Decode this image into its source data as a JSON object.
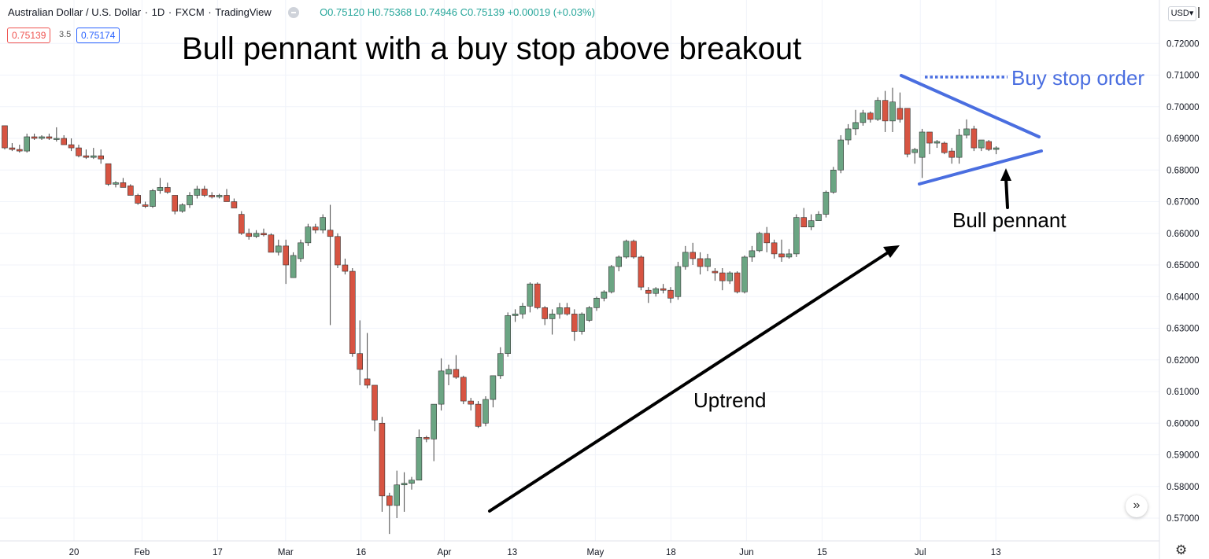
{
  "header": {
    "title": "Australian Dollar / U.S. Dollar",
    "interval": "1D",
    "exchange": "FXCM",
    "platform": "TradingView",
    "ohlc": "O0.75120 H0.75368 L0.74946 C0.75139 +0.00019 (+0.03%)",
    "sell_price": "0.75139",
    "spread": "3.5",
    "buy_price": "0.75174",
    "currency": "USD"
  },
  "annotations": {
    "title": "Bull pennant with a buy stop above breakout",
    "buy_stop_label": "Buy stop order",
    "pennant_label": "Bull pennant",
    "trend_label": "Uptrend"
  },
  "colors": {
    "up": "#6ba583",
    "down": "#d75442",
    "pennant_lines": "#4a6ee0",
    "axis_text": "#131722",
    "grid": "#f0f3fa"
  },
  "controls": {
    "scroll_icon": "chevron-double-right-icon",
    "settings_icon": "gear-icon"
  },
  "chart_data": {
    "type": "candlestick",
    "ylim": [
      0.565,
      0.7225
    ],
    "y_ticks": [
      "0.72000",
      "0.71000",
      "0.70000",
      "0.69000",
      "0.68000",
      "0.67000",
      "0.66000",
      "0.65000",
      "0.64000",
      "0.63000",
      "0.62000",
      "0.61000",
      "0.60000",
      "0.59000",
      "0.58000",
      "0.57000"
    ],
    "x_ticks": [
      {
        "label": "20",
        "day": 0
      },
      {
        "label": "Feb",
        "day": 9
      },
      {
        "label": "17",
        "day": 19
      },
      {
        "label": "Mar",
        "day": 28
      },
      {
        "label": "16",
        "day": 38
      },
      {
        "label": "Apr",
        "day": 49
      },
      {
        "label": "13",
        "day": 58
      },
      {
        "label": "May",
        "day": 69
      },
      {
        "label": "18",
        "day": 79
      },
      {
        "label": "Jun",
        "day": 89
      },
      {
        "label": "15",
        "day": 99
      },
      {
        "label": "Jul",
        "day": 112
      },
      {
        "label": "13",
        "day": 122
      }
    ],
    "candles": [
      [
        0.694,
        0.694,
        0.6865,
        0.687
      ],
      [
        0.687,
        0.6885,
        0.686,
        0.6865
      ],
      [
        0.6865,
        0.688,
        0.6855,
        0.686
      ],
      [
        0.686,
        0.6915,
        0.6855,
        0.6905
      ],
      [
        0.6905,
        0.6915,
        0.6895,
        0.69
      ],
      [
        0.69,
        0.691,
        0.6895,
        0.6905
      ],
      [
        0.6905,
        0.6915,
        0.6895,
        0.69
      ],
      [
        0.69,
        0.6935,
        0.689,
        0.69
      ],
      [
        0.69,
        0.691,
        0.688,
        0.688
      ],
      [
        0.688,
        0.69,
        0.686,
        0.687
      ],
      [
        0.687,
        0.688,
        0.684,
        0.6845
      ],
      [
        0.6845,
        0.6865,
        0.6835,
        0.684
      ],
      [
        0.684,
        0.687,
        0.6835,
        0.6845
      ],
      [
        0.6845,
        0.6865,
        0.682,
        0.6835
      ],
      [
        0.682,
        0.682,
        0.675,
        0.6755
      ],
      [
        0.6755,
        0.6765,
        0.6745,
        0.676
      ],
      [
        0.676,
        0.6775,
        0.6745,
        0.6745
      ],
      [
        0.675,
        0.6755,
        0.672,
        0.672
      ],
      [
        0.672,
        0.6725,
        0.669,
        0.6695
      ],
      [
        0.669,
        0.67,
        0.668,
        0.6685
      ],
      [
        0.6685,
        0.674,
        0.668,
        0.6735
      ],
      [
        0.6735,
        0.6775,
        0.6725,
        0.6745
      ],
      [
        0.6745,
        0.676,
        0.6725,
        0.673
      ],
      [
        0.672,
        0.672,
        0.666,
        0.667
      ],
      [
        0.667,
        0.6695,
        0.6665,
        0.669
      ],
      [
        0.669,
        0.673,
        0.668,
        0.672
      ],
      [
        0.672,
        0.675,
        0.671,
        0.674
      ],
      [
        0.674,
        0.675,
        0.6715,
        0.672
      ],
      [
        0.672,
        0.673,
        0.671,
        0.6715
      ],
      [
        0.6715,
        0.6725,
        0.671,
        0.672
      ],
      [
        0.672,
        0.674,
        0.67,
        0.67
      ],
      [
        0.67,
        0.671,
        0.668,
        0.668
      ],
      [
        0.666,
        0.667,
        0.6595,
        0.66
      ],
      [
        0.66,
        0.6615,
        0.658,
        0.659
      ],
      [
        0.659,
        0.661,
        0.6585,
        0.66
      ],
      [
        0.66,
        0.6615,
        0.659,
        0.6595
      ],
      [
        0.6595,
        0.66,
        0.654,
        0.654
      ],
      [
        0.654,
        0.658,
        0.653,
        0.656
      ],
      [
        0.656,
        0.658,
        0.644,
        0.65
      ],
      [
        0.646,
        0.654,
        0.646,
        0.653
      ],
      [
        0.652,
        0.658,
        0.651,
        0.657
      ],
      [
        0.657,
        0.663,
        0.656,
        0.662
      ],
      [
        0.662,
        0.663,
        0.66,
        0.661
      ],
      [
        0.661,
        0.666,
        0.66,
        0.665
      ],
      [
        0.661,
        0.669,
        0.631,
        0.659
      ],
      [
        0.659,
        0.66,
        0.649,
        0.65
      ],
      [
        0.65,
        0.652,
        0.647,
        0.648
      ],
      [
        0.648,
        0.649,
        0.621,
        0.622
      ],
      [
        0.622,
        0.6325,
        0.612,
        0.617
      ],
      [
        0.614,
        0.6285,
        0.611,
        0.612
      ],
      [
        0.612,
        0.612,
        0.5975,
        0.601
      ],
      [
        0.6,
        0.602,
        0.572,
        0.577
      ],
      [
        0.577,
        0.578,
        0.565,
        0.574
      ],
      [
        0.574,
        0.585,
        0.57,
        0.5805
      ],
      [
        0.5805,
        0.5845,
        0.572,
        0.581
      ],
      [
        0.581,
        0.583,
        0.579,
        0.582
      ],
      [
        0.582,
        0.598,
        0.582,
        0.5955
      ],
      [
        0.5955,
        0.596,
        0.594,
        0.595
      ],
      [
        0.595,
        0.606,
        0.588,
        0.606
      ],
      [
        0.606,
        0.6205,
        0.604,
        0.6165
      ],
      [
        0.6155,
        0.6185,
        0.612,
        0.617
      ],
      [
        0.617,
        0.6215,
        0.614,
        0.6145
      ],
      [
        0.6145,
        0.615,
        0.606,
        0.607
      ],
      [
        0.607,
        0.608,
        0.604,
        0.606
      ],
      [
        0.606,
        0.607,
        0.5985,
        0.599
      ],
      [
        0.6,
        0.6085,
        0.599,
        0.6075
      ],
      [
        0.6075,
        0.615,
        0.605,
        0.615
      ],
      [
        0.615,
        0.624,
        0.614,
        0.622
      ],
      [
        0.622,
        0.635,
        0.621,
        0.634
      ],
      [
        0.634,
        0.636,
        0.632,
        0.6345
      ],
      [
        0.6345,
        0.638,
        0.633,
        0.637
      ],
      [
        0.637,
        0.6445,
        0.635,
        0.644
      ],
      [
        0.644,
        0.6445,
        0.636,
        0.6365
      ],
      [
        0.6365,
        0.637,
        0.631,
        0.633
      ],
      [
        0.633,
        0.636,
        0.628,
        0.6345
      ],
      [
        0.6345,
        0.638,
        0.633,
        0.6365
      ],
      [
        0.6365,
        0.638,
        0.634,
        0.6345
      ],
      [
        0.6345,
        0.636,
        0.626,
        0.629
      ],
      [
        0.629,
        0.635,
        0.628,
        0.6345
      ],
      [
        0.6325,
        0.637,
        0.632,
        0.6365
      ],
      [
        0.6365,
        0.64,
        0.6355,
        0.6395
      ],
      [
        0.6395,
        0.642,
        0.6385,
        0.6415
      ],
      [
        0.6415,
        0.65,
        0.641,
        0.6495
      ],
      [
        0.6495,
        0.653,
        0.648,
        0.6525
      ],
      [
        0.6525,
        0.658,
        0.652,
        0.6575
      ],
      [
        0.6575,
        0.658,
        0.652,
        0.6525
      ],
      [
        0.6525,
        0.653,
        0.642,
        0.643
      ],
      [
        0.642,
        0.643,
        0.638,
        0.641
      ],
      [
        0.641,
        0.643,
        0.64,
        0.6425
      ],
      [
        0.6425,
        0.644,
        0.641,
        0.642
      ],
      [
        0.642,
        0.643,
        0.638,
        0.6395
      ],
      [
        0.64,
        0.651,
        0.639,
        0.6495
      ],
      [
        0.6495,
        0.656,
        0.6485,
        0.654
      ],
      [
        0.654,
        0.657,
        0.65,
        0.652
      ],
      [
        0.652,
        0.654,
        0.647,
        0.6495
      ],
      [
        0.6495,
        0.6535,
        0.648,
        0.652
      ],
      [
        0.648,
        0.649,
        0.645,
        0.6475
      ],
      [
        0.6475,
        0.649,
        0.642,
        0.645
      ],
      [
        0.645,
        0.648,
        0.644,
        0.6475
      ],
      [
        0.6475,
        0.648,
        0.641,
        0.6415
      ],
      [
        0.6415,
        0.653,
        0.641,
        0.6525
      ],
      [
        0.6525,
        0.656,
        0.651,
        0.6545
      ],
      [
        0.6545,
        0.6605,
        0.654,
        0.66
      ],
      [
        0.66,
        0.662,
        0.654,
        0.657
      ],
      [
        0.657,
        0.658,
        0.652,
        0.6535
      ],
      [
        0.6535,
        0.658,
        0.651,
        0.6525
      ],
      [
        0.6525,
        0.655,
        0.652,
        0.6535
      ],
      [
        0.6535,
        0.666,
        0.6525,
        0.665
      ],
      [
        0.665,
        0.668,
        0.662,
        0.662
      ],
      [
        0.662,
        0.666,
        0.661,
        0.664
      ],
      [
        0.664,
        0.667,
        0.664,
        0.666
      ],
      [
        0.666,
        0.6735,
        0.665,
        0.673
      ],
      [
        0.673,
        0.681,
        0.6725,
        0.68
      ],
      [
        0.68,
        0.691,
        0.679,
        0.6895
      ],
      [
        0.6895,
        0.6945,
        0.688,
        0.693
      ],
      [
        0.693,
        0.699,
        0.691,
        0.695
      ],
      [
        0.695,
        0.699,
        0.694,
        0.698
      ],
      [
        0.698,
        0.6985,
        0.695,
        0.696
      ],
      [
        0.696,
        0.703,
        0.6955,
        0.702
      ],
      [
        0.702,
        0.705,
        0.692,
        0.6955
      ],
      [
        0.6955,
        0.706,
        0.692,
        0.7015
      ],
      [
        0.6995,
        0.7045,
        0.695,
        0.696
      ],
      [
        0.6995,
        0.6995,
        0.684,
        0.685
      ],
      [
        0.6855,
        0.687,
        0.682,
        0.6865
      ],
      [
        0.684,
        0.693,
        0.6775,
        0.692
      ],
      [
        0.692,
        0.692,
        0.685,
        0.6885
      ],
      [
        0.6885,
        0.6895,
        0.687,
        0.689
      ],
      [
        0.6885,
        0.689,
        0.685,
        0.6855
      ],
      [
        0.686,
        0.687,
        0.682,
        0.684
      ],
      [
        0.684,
        0.693,
        0.682,
        0.691
      ],
      [
        0.691,
        0.696,
        0.69,
        0.693
      ],
      [
        0.693,
        0.694,
        0.686,
        0.687
      ],
      [
        0.687,
        0.6895,
        0.686,
        0.6895
      ],
      [
        0.689,
        0.6895,
        0.686,
        0.6865
      ],
      [
        0.6865,
        0.6875,
        0.685,
        0.687
      ]
    ]
  }
}
